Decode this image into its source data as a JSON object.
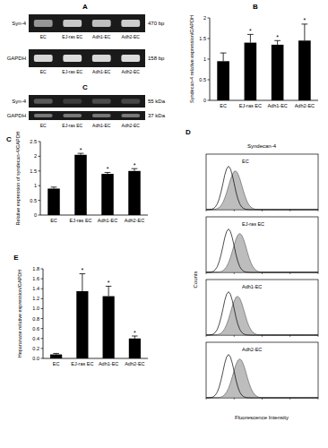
{
  "gel_a": {
    "letter": "A",
    "lanes": [
      "EC",
      "EJ-ras EC",
      "Adh1-EC",
      "Adh2-EC"
    ],
    "rows": [
      {
        "label": "Syn-4",
        "size": "470 bp"
      },
      {
        "label": "GAPDH",
        "size": "158 bp"
      }
    ]
  },
  "blot_c": {
    "letter": "C",
    "lanes": [
      "EC",
      "EJ-ras EC",
      "Adh1-EC",
      "Adh2-EC"
    ],
    "rows": [
      {
        "label": "Syn-4",
        "size": "55 kDa"
      },
      {
        "label": "GAPDH",
        "size": "37 kDa"
      }
    ]
  },
  "flow_d": {
    "letter": "D",
    "title": "Syndecan-4",
    "panels": [
      "EC",
      "EJ-ras EC",
      "Adh1-EC",
      "Adh2-EC"
    ],
    "y_label": "Counts",
    "x_label": "Fluorescence Intensity"
  },
  "chart_data": [
    {
      "type": "bar",
      "title": "B",
      "y_label": "Syndecan-4 relative expression/GAPDH",
      "categories": [
        "EC",
        "EJ-ras EC",
        "Adh1-EC",
        "Adh2-EC"
      ],
      "values": [
        0.95,
        1.4,
        1.35,
        1.45
      ],
      "errors": [
        0.2,
        0.2,
        0.1,
        0.4
      ],
      "annotations": [
        {
          "index": 1,
          "text": "*"
        },
        {
          "index": 2,
          "text": "*"
        },
        {
          "index": 3,
          "text": "*"
        }
      ],
      "color": "#000000",
      "ylim": [
        0,
        2
      ],
      "yticks": [
        0,
        0.5,
        1,
        1.5,
        2
      ],
      "grid": false
    },
    {
      "type": "bar",
      "title": "C",
      "y_label": "Relative expression of syndecan-4/GAPDH",
      "categories": [
        "EC",
        "EJ-ras EC",
        "Adh1-EC",
        "Adh2-EC"
      ],
      "values": [
        0.9,
        2.05,
        1.4,
        1.5
      ],
      "errors": [
        0.05,
        0.05,
        0.05,
        0.08
      ],
      "annotations": [
        {
          "index": 1,
          "text": "*"
        },
        {
          "index": 2,
          "text": "*"
        },
        {
          "index": 3,
          "text": "*"
        }
      ],
      "color": "#000000",
      "ylim": [
        0,
        2.5
      ],
      "yticks": [
        0,
        0.5,
        1,
        1.5,
        2,
        2.5
      ],
      "grid": false
    },
    {
      "type": "bar",
      "title": "E",
      "y_label": "Heparanase relative expression/GAPDH",
      "categories": [
        "EC",
        "EJ-ras EC",
        "Adh1-EC",
        "Adh2-EC"
      ],
      "values": [
        0.08,
        1.35,
        1.25,
        0.4
      ],
      "errors": [
        0.02,
        0.35,
        0.2,
        0.05
      ],
      "annotations": [
        {
          "index": 1,
          "text": "*"
        },
        {
          "index": 2,
          "text": "*"
        },
        {
          "index": 3,
          "text": "*"
        }
      ],
      "color": "#000000",
      "ylim": [
        0,
        1.8
      ],
      "yticks": [
        {
          "value": 0,
          "label": "0.0"
        },
        {
          "value": 0.2,
          "label": "0.2"
        },
        {
          "value": 0.4,
          "label": "0.4"
        },
        {
          "value": 0.6,
          "label": "0.6"
        },
        {
          "value": 0.8,
          "label": "0.8"
        },
        {
          "value": 1,
          "label": "1.0"
        },
        {
          "value": 1.2,
          "label": "1.2"
        },
        {
          "value": 1.4,
          "label": "1.4"
        },
        {
          "value": 1.6,
          "label": "1.6"
        },
        {
          "value": 1.8,
          "label": "1.8"
        }
      ],
      "grid": false
    }
  ]
}
